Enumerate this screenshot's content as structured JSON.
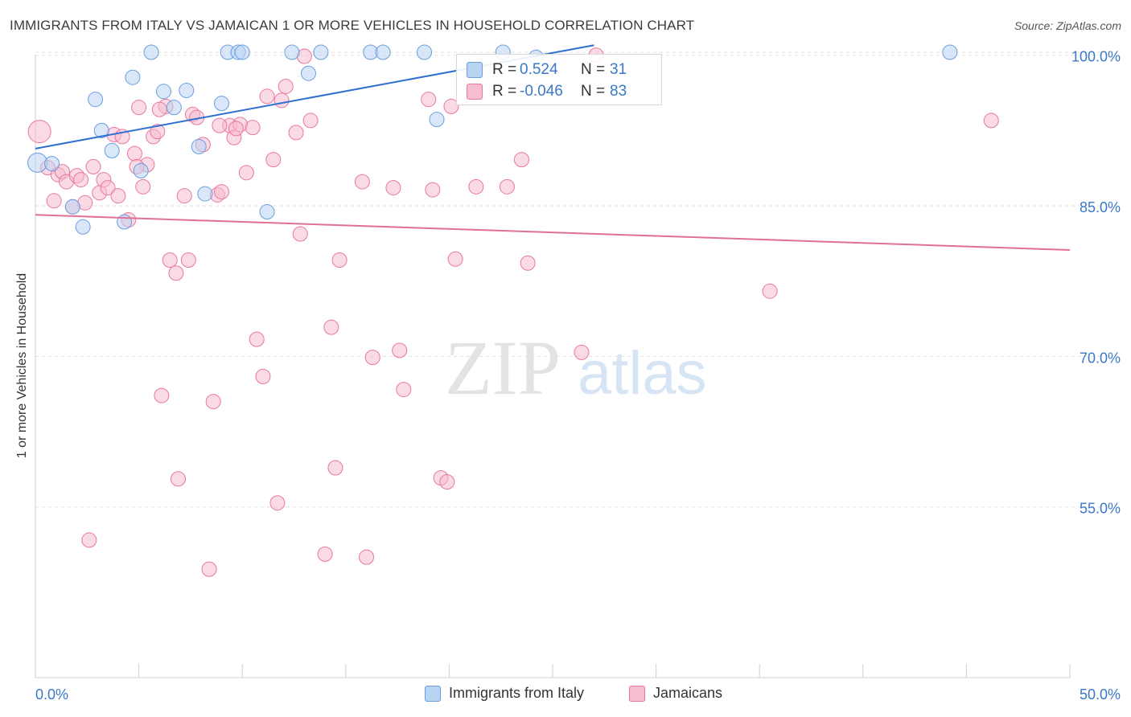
{
  "title": "IMMIGRANTS FROM ITALY VS JAMAICAN 1 OR MORE VEHICLES IN HOUSEHOLD CORRELATION CHART",
  "source": "Source: ZipAtlas.com",
  "watermark": {
    "zip": "ZIP",
    "atlas": "atlas"
  },
  "colors": {
    "blue": "#6a9ee0",
    "blue_fill": "#b9d3f3",
    "pink": "#e8789d",
    "pink_fill": "#f6bccf",
    "blue_line": "#2f6fd0",
    "pink_line": "#e0709a",
    "axis_text": "#3a78c9"
  },
  "legend": {
    "rows": [
      {
        "r_label": "R =",
        "r_value": "0.524",
        "n_label": "N =",
        "n_value": "31"
      },
      {
        "r_label": "R =",
        "r_value": "-0.046",
        "n_label": "N =",
        "n_value": "83"
      }
    ]
  },
  "chart_data": {
    "type": "scatter",
    "title": "IMMIGRANTS FROM ITALY VS JAMAICAN 1 OR MORE VEHICLES IN HOUSEHOLD CORRELATION CHART",
    "xlabel": "",
    "ylabel": "1 or more Vehicles in Household",
    "xlim": [
      0,
      50
    ],
    "ylim": [
      38,
      101.5
    ],
    "x_tick_labels": [
      {
        "value": 0,
        "label": "0.0%"
      },
      {
        "value": 50,
        "label": "50.0%"
      }
    ],
    "y_tick_labels": [
      {
        "value": 100,
        "label": "100.0%"
      },
      {
        "value": 85,
        "label": "85.0%"
      },
      {
        "value": 70,
        "label": "70.0%"
      },
      {
        "value": 55,
        "label": "55.0%"
      }
    ],
    "grid": "horizontal-dashed",
    "legend_position": "top-center",
    "series": [
      {
        "name": "Immigrants from Italy",
        "color": "#6a9ee0",
        "r": 0.524,
        "n": 31,
        "trend": {
          "x": [
            0,
            27
          ],
          "y": [
            90.7,
            101.0
          ]
        },
        "points": [
          [
            0.1,
            89.3
          ],
          [
            0.8,
            89.2
          ],
          [
            1.8,
            84.9
          ],
          [
            2.3,
            82.9
          ],
          [
            2.9,
            95.6
          ],
          [
            3.2,
            92.5
          ],
          [
            3.7,
            90.5
          ],
          [
            4.3,
            83.4
          ],
          [
            4.7,
            97.8
          ],
          [
            5.1,
            88.5
          ],
          [
            5.6,
            100.3
          ],
          [
            6.2,
            96.4
          ],
          [
            6.7,
            94.8
          ],
          [
            7.3,
            96.5
          ],
          [
            7.9,
            90.9
          ],
          [
            8.2,
            86.2
          ],
          [
            9.0,
            95.2
          ],
          [
            9.3,
            100.3
          ],
          [
            9.8,
            100.3
          ],
          [
            10.0,
            100.3
          ],
          [
            11.2,
            84.4
          ],
          [
            12.4,
            100.3
          ],
          [
            13.2,
            98.2
          ],
          [
            13.8,
            100.3
          ],
          [
            16.2,
            100.3
          ],
          [
            16.8,
            100.3
          ],
          [
            18.8,
            100.3
          ],
          [
            19.4,
            93.6
          ],
          [
            22.6,
            100.3
          ],
          [
            24.2,
            99.8
          ],
          [
            44.2,
            100.3
          ]
        ]
      },
      {
        "name": "Jamaicans",
        "color": "#e8789d",
        "r": -0.046,
        "n": 83,
        "trend": {
          "x": [
            0,
            50
          ],
          "y": [
            84.1,
            80.6
          ]
        },
        "points": [
          [
            0.2,
            92.4
          ],
          [
            0.6,
            88.8
          ],
          [
            0.9,
            85.5
          ],
          [
            1.1,
            88.1
          ],
          [
            1.3,
            88.4
          ],
          [
            1.5,
            87.4
          ],
          [
            1.8,
            84.9
          ],
          [
            2.0,
            88.0
          ],
          [
            2.2,
            87.6
          ],
          [
            2.4,
            85.3
          ],
          [
            2.6,
            51.7
          ],
          [
            2.8,
            88.9
          ],
          [
            3.1,
            86.3
          ],
          [
            3.3,
            87.6
          ],
          [
            3.5,
            86.8
          ],
          [
            3.8,
            92.1
          ],
          [
            4.0,
            86.0
          ],
          [
            4.2,
            91.9
          ],
          [
            4.5,
            83.6
          ],
          [
            4.8,
            90.2
          ],
          [
            5.0,
            94.8
          ],
          [
            5.2,
            86.9
          ],
          [
            5.4,
            89.1
          ],
          [
            5.7,
            91.9
          ],
          [
            5.9,
            92.4
          ],
          [
            6.1,
            66.1
          ],
          [
            6.3,
            94.9
          ],
          [
            6.5,
            79.6
          ],
          [
            6.8,
            78.3
          ],
          [
            6.9,
            57.8
          ],
          [
            7.2,
            86.0
          ],
          [
            7.4,
            79.6
          ],
          [
            7.6,
            94.1
          ],
          [
            7.8,
            93.8
          ],
          [
            8.1,
            91.1
          ],
          [
            8.4,
            48.8
          ],
          [
            8.6,
            65.5
          ],
          [
            8.8,
            86.1
          ],
          [
            9.0,
            86.4
          ],
          [
            9.4,
            93.0
          ],
          [
            9.6,
            91.8
          ],
          [
            9.9,
            93.1
          ],
          [
            10.2,
            88.3
          ],
          [
            10.5,
            92.8
          ],
          [
            10.7,
            71.7
          ],
          [
            11.0,
            68.0
          ],
          [
            11.2,
            95.9
          ],
          [
            11.5,
            89.6
          ],
          [
            11.7,
            55.4
          ],
          [
            11.9,
            95.5
          ],
          [
            12.1,
            96.9
          ],
          [
            12.6,
            92.3
          ],
          [
            12.8,
            82.2
          ],
          [
            13.0,
            99.9
          ],
          [
            13.3,
            93.5
          ],
          [
            14.0,
            50.3
          ],
          [
            14.3,
            72.9
          ],
          [
            14.5,
            58.9
          ],
          [
            14.7,
            79.6
          ],
          [
            15.8,
            87.4
          ],
          [
            16.0,
            50.0
          ],
          [
            16.3,
            69.9
          ],
          [
            17.3,
            86.8
          ],
          [
            17.6,
            70.6
          ],
          [
            17.8,
            66.7
          ],
          [
            19.2,
            86.6
          ],
          [
            19.0,
            95.6
          ],
          [
            19.6,
            57.9
          ],
          [
            19.9,
            57.5
          ],
          [
            20.1,
            94.9
          ],
          [
            20.3,
            79.7
          ],
          [
            21.3,
            86.9
          ],
          [
            22.8,
            86.9
          ],
          [
            23.5,
            89.6
          ],
          [
            23.8,
            79.3
          ],
          [
            26.4,
            70.4
          ],
          [
            27.1,
            100.0
          ],
          [
            35.5,
            76.5
          ],
          [
            46.2,
            93.5
          ],
          [
            8.9,
            93.0
          ],
          [
            6.0,
            94.6
          ],
          [
            4.9,
            88.9
          ],
          [
            9.7,
            92.7
          ]
        ]
      }
    ]
  },
  "bottom_legend": [
    {
      "label": "Immigrants from Italy"
    },
    {
      "label": "Jamaicans"
    }
  ]
}
